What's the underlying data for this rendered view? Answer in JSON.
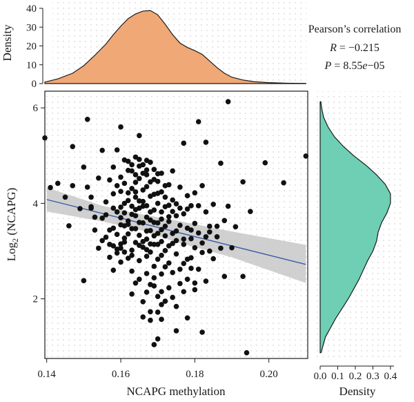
{
  "chart_data": [
    {
      "type": "scatter",
      "xlabel": "NCAPG methylation",
      "ylabel_base": "Log",
      "ylabel_sub": "2",
      "ylabel_rest": " (NCAPG)",
      "xlim": [
        0.1395,
        0.2105
      ],
      "ylim": [
        0.75,
        6.35
      ],
      "xticks": [
        "0.14",
        "0.16",
        "0.18",
        "0.20"
      ],
      "yticks": [
        "2",
        "4",
        "6"
      ],
      "point_color": "#111111",
      "fit_color": "#3a5ba8",
      "band_color": "#c8c8c8",
      "fit": {
        "x": [
          0.14,
          0.21
        ],
        "y": [
          4.08,
          2.72
        ]
      },
      "band_lower": [
        3.83,
        3.62,
        3.45,
        3.19,
        2.87,
        2.33
      ],
      "band_upper": [
        4.33,
        3.95,
        3.78,
        3.64,
        3.41,
        3.13
      ],
      "band_x": [
        0.14,
        0.155,
        0.165,
        0.175,
        0.19,
        0.21
      ],
      "points": [
        [
          0.1395,
          5.37
        ],
        [
          0.141,
          4.33
        ],
        [
          0.143,
          4.42
        ],
        [
          0.145,
          4.13
        ],
        [
          0.146,
          3.53
        ],
        [
          0.147,
          4.37
        ],
        [
          0.147,
          5.19
        ],
        [
          0.149,
          3.89
        ],
        [
          0.15,
          4.76
        ],
        [
          0.15,
          2.38
        ],
        [
          0.151,
          4.34
        ],
        [
          0.151,
          5.76
        ],
        [
          0.152,
          3.93
        ],
        [
          0.152,
          4.13
        ],
        [
          0.153,
          3.71
        ],
        [
          0.154,
          4.53
        ],
        [
          0.155,
          5.11
        ],
        [
          0.155,
          3.69
        ],
        [
          0.156,
          4.03
        ],
        [
          0.157,
          3.44
        ],
        [
          0.157,
          2.87
        ],
        [
          0.158,
          3.9
        ],
        [
          0.158,
          4.76
        ],
        [
          0.158,
          2.6
        ],
        [
          0.159,
          3.04
        ],
        [
          0.159,
          5.12
        ],
        [
          0.159,
          4.37
        ],
        [
          0.16,
          3.15
        ],
        [
          0.16,
          2.77
        ],
        [
          0.16,
          3.55
        ],
        [
          0.16,
          4.55
        ],
        [
          0.16,
          5.6
        ],
        [
          0.161,
          2.98
        ],
        [
          0.161,
          3.8
        ],
        [
          0.161,
          4.91
        ],
        [
          0.161,
          3.27
        ],
        [
          0.162,
          4.06
        ],
        [
          0.162,
          3.63
        ],
        [
          0.162,
          2.85
        ],
        [
          0.162,
          4.22
        ],
        [
          0.163,
          3.02
        ],
        [
          0.163,
          3.94
        ],
        [
          0.163,
          4.68
        ],
        [
          0.163,
          3.47
        ],
        [
          0.163,
          2.58
        ],
        [
          0.164,
          4.13
        ],
        [
          0.164,
          3.74
        ],
        [
          0.164,
          4.97
        ],
        [
          0.164,
          3.18
        ],
        [
          0.164,
          2.33
        ],
        [
          0.165,
          3.9
        ],
        [
          0.165,
          4.52
        ],
        [
          0.165,
          3.33
        ],
        [
          0.165,
          4.78
        ],
        [
          0.165,
          2.8
        ],
        [
          0.165,
          5.42
        ],
        [
          0.166,
          3.59
        ],
        [
          0.166,
          4.28
        ],
        [
          0.166,
          3.08
        ],
        [
          0.166,
          1.94
        ],
        [
          0.166,
          4.04
        ],
        [
          0.167,
          3.71
        ],
        [
          0.167,
          2.53
        ],
        [
          0.167,
          4.6
        ],
        [
          0.167,
          3.25
        ],
        [
          0.167,
          2.14
        ],
        [
          0.167,
          4.9
        ],
        [
          0.168,
          3.82
        ],
        [
          0.168,
          1.55
        ],
        [
          0.168,
          2.98
        ],
        [
          0.168,
          4.45
        ],
        [
          0.168,
          3.43
        ],
        [
          0.168,
          1.73
        ],
        [
          0.169,
          4.19
        ],
        [
          0.169,
          2.68
        ],
        [
          0.169,
          3.6
        ],
        [
          0.169,
          1.04
        ],
        [
          0.169,
          4.71
        ],
        [
          0.169,
          2.27
        ],
        [
          0.17,
          3.37
        ],
        [
          0.17,
          4.0
        ],
        [
          0.17,
          2.05
        ],
        [
          0.17,
          1.16
        ],
        [
          0.17,
          3.14
        ],
        [
          0.17,
          4.46
        ],
        [
          0.171,
          3.67
        ],
        [
          0.171,
          2.52
        ],
        [
          0.171,
          4.24
        ],
        [
          0.171,
          2.91
        ],
        [
          0.171,
          1.88
        ],
        [
          0.172,
          3.93
        ],
        [
          0.172,
          3.32
        ],
        [
          0.172,
          2.67
        ],
        [
          0.172,
          4.13
        ],
        [
          0.173,
          3.62
        ],
        [
          0.173,
          2.23
        ],
        [
          0.173,
          4.39
        ],
        [
          0.173,
          3.11
        ],
        [
          0.174,
          3.83
        ],
        [
          0.174,
          2.55
        ],
        [
          0.174,
          3.37
        ],
        [
          0.174,
          4.68
        ],
        [
          0.175,
          3.22
        ],
        [
          0.175,
          2.94
        ],
        [
          0.175,
          3.99
        ],
        [
          0.175,
          1.84
        ],
        [
          0.176,
          3.54
        ],
        [
          0.176,
          4.34
        ],
        [
          0.176,
          2.32
        ],
        [
          0.177,
          3.78
        ],
        [
          0.177,
          3.14
        ],
        [
          0.177,
          2.74
        ],
        [
          0.177,
          5.26
        ],
        [
          0.178,
          3.48
        ],
        [
          0.178,
          4.16
        ],
        [
          0.178,
          2.41
        ],
        [
          0.178,
          1.6
        ],
        [
          0.179,
          3.95
        ],
        [
          0.179,
          3.26
        ],
        [
          0.179,
          2.86
        ],
        [
          0.18,
          4.22
        ],
        [
          0.18,
          3.58
        ],
        [
          0.18,
          2.19
        ],
        [
          0.18,
          3.07
        ],
        [
          0.181,
          3.38
        ],
        [
          0.181,
          5.71
        ],
        [
          0.181,
          2.62
        ],
        [
          0.182,
          4.37
        ],
        [
          0.182,
          3.17
        ],
        [
          0.182,
          1.3
        ],
        [
          0.183,
          3.82
        ],
        [
          0.183,
          5.28
        ],
        [
          0.183,
          2.37
        ],
        [
          0.184,
          3.52
        ],
        [
          0.184,
          3.4
        ],
        [
          0.185,
          3.98
        ],
        [
          0.185,
          2.84
        ],
        [
          0.186,
          3.3
        ],
        [
          0.187,
          4.84
        ],
        [
          0.187,
          3.06
        ],
        [
          0.188,
          3.64
        ],
        [
          0.188,
          2.47
        ],
        [
          0.189,
          6.13
        ],
        [
          0.189,
          3.94
        ],
        [
          0.19,
          3.07
        ],
        [
          0.191,
          3.51
        ],
        [
          0.193,
          4.45
        ],
        [
          0.193,
          2.47
        ],
        [
          0.194,
          0.87
        ],
        [
          0.195,
          3.83
        ],
        [
          0.199,
          4.85
        ],
        [
          0.204,
          4.43
        ],
        [
          0.21,
          4.99
        ],
        [
          0.158,
          4.2
        ],
        [
          0.159,
          3.35
        ],
        [
          0.16,
          3.92
        ],
        [
          0.161,
          4.42
        ],
        [
          0.162,
          3.56
        ],
        [
          0.163,
          4.31
        ],
        [
          0.164,
          3.47
        ],
        [
          0.165,
          4.05
        ],
        [
          0.166,
          3.2
        ],
        [
          0.167,
          3.95
        ],
        [
          0.168,
          3.15
        ],
        [
          0.169,
          3.86
        ],
        [
          0.17,
          2.83
        ],
        [
          0.171,
          3.45
        ],
        [
          0.172,
          4.37
        ],
        [
          0.173,
          3.72
        ],
        [
          0.174,
          4.07
        ],
        [
          0.175,
          3.42
        ],
        [
          0.176,
          3.9
        ],
        [
          0.177,
          3.25
        ],
        [
          0.156,
          3.76
        ],
        [
          0.157,
          4.49
        ],
        [
          0.158,
          3.11
        ],
        [
          0.159,
          3.82
        ],
        [
          0.16,
          4.25
        ],
        [
          0.161,
          3.53
        ],
        [
          0.162,
          4.69
        ],
        [
          0.163,
          3.77
        ],
        [
          0.164,
          4.44
        ],
        [
          0.165,
          3.6
        ],
        [
          0.166,
          4.63
        ],
        [
          0.167,
          3.42
        ],
        [
          0.168,
          4.15
        ],
        [
          0.169,
          3.32
        ],
        [
          0.17,
          4.21
        ],
        [
          0.171,
          3.82
        ],
        [
          0.172,
          3.01
        ],
        [
          0.173,
          3.96
        ],
        [
          0.174,
          3.16
        ],
        [
          0.175,
          3.74
        ],
        [
          0.176,
          2.62
        ],
        [
          0.178,
          3.88
        ],
        [
          0.179,
          3.44
        ],
        [
          0.181,
          3.95
        ],
        [
          0.184,
          3.0
        ],
        [
          0.163,
          2.91
        ],
        [
          0.165,
          2.41
        ],
        [
          0.167,
          2.89
        ],
        [
          0.169,
          2.44
        ],
        [
          0.171,
          2.15
        ],
        [
          0.173,
          2.75
        ],
        [
          0.166,
          1.62
        ],
        [
          0.171,
          1.57
        ],
        [
          0.175,
          1.33
        ],
        [
          0.163,
          2.1
        ],
        [
          0.168,
          2.3
        ],
        [
          0.17,
          1.72
        ],
        [
          0.172,
          1.95
        ],
        [
          0.174,
          2.03
        ],
        [
          0.162,
          3.36
        ],
        [
          0.164,
          3.87
        ],
        [
          0.166,
          3.94
        ],
        [
          0.168,
          3.65
        ],
        [
          0.17,
          3.59
        ],
        [
          0.172,
          3.52
        ],
        [
          0.164,
          4.6
        ],
        [
          0.166,
          4.81
        ],
        [
          0.168,
          4.86
        ],
        [
          0.17,
          4.62
        ],
        [
          0.165,
          4.92
        ],
        [
          0.167,
          4.35
        ],
        [
          0.169,
          4.5
        ],
        [
          0.171,
          4.63
        ],
        [
          0.163,
          4.81
        ],
        [
          0.161,
          4.0
        ],
        [
          0.162,
          4.88
        ],
        [
          0.164,
          4.24
        ],
        [
          0.167,
          4.7
        ],
        [
          0.16,
          3.06
        ],
        [
          0.161,
          3.19
        ],
        [
          0.165,
          3.12
        ],
        [
          0.167,
          3.03
        ],
        [
          0.169,
          3.14
        ],
        [
          0.171,
          3.2
        ],
        [
          0.16,
          3.7
        ],
        [
          0.159,
          2.96
        ],
        [
          0.158,
          3.48
        ],
        [
          0.157,
          3.14
        ],
        [
          0.156,
          3.29
        ],
        [
          0.155,
          3.22
        ],
        [
          0.154,
          3.06
        ],
        [
          0.153,
          3.44
        ],
        [
          0.152,
          3.9
        ],
        [
          0.177,
          2.15
        ],
        [
          0.178,
          2.83
        ],
        [
          0.179,
          2.64
        ],
        [
          0.18,
          2.33
        ],
        [
          0.182,
          2.97
        ],
        [
          0.183,
          3.3
        ],
        [
          0.186,
          3.52
        ]
      ]
    },
    {
      "type": "area",
      "ylabel": "Density",
      "x_ref": "NCAPG methylation",
      "yticks": [
        "0",
        "10",
        "20",
        "30",
        "40"
      ],
      "ylim": [
        0,
        40
      ],
      "fill_color": "#f0a877",
      "x": [
        0.1395,
        0.143,
        0.147,
        0.15,
        0.153,
        0.156,
        0.158,
        0.16,
        0.162,
        0.164,
        0.166,
        0.168,
        0.17,
        0.172,
        0.174,
        0.176,
        0.178,
        0.18,
        0.182,
        0.184,
        0.186,
        0.188,
        0.19,
        0.193,
        0.196,
        0.2,
        0.205,
        0.21
      ],
      "y": [
        0.8,
        2.5,
        5.5,
        9.5,
        15,
        21,
        26,
        30.5,
        34.5,
        37,
        38.5,
        38.8,
        36.5,
        31.5,
        26,
        21.5,
        19.2,
        17.5,
        15.5,
        12,
        8.5,
        5.5,
        3.4,
        1.9,
        1.0,
        0.5,
        0.2,
        0.1
      ]
    },
    {
      "type": "area",
      "xlabel": "Density",
      "orientation": "horizontal",
      "y_ref": "Log2 (NCAPG)",
      "xticks": [
        "0.0",
        "0.1",
        "0.2",
        "0.3",
        "0.4"
      ],
      "xlim": [
        0,
        0.42
      ],
      "fill_color": "#6ecfb4",
      "y": [
        0.87,
        1.2,
        1.6,
        2.0,
        2.4,
        2.8,
        3.0,
        3.2,
        3.4,
        3.6,
        3.8,
        4.0,
        4.2,
        4.4,
        4.6,
        4.8,
        5.0,
        5.2,
        5.4,
        5.6,
        5.8,
        6.0,
        6.13
      ],
      "x": [
        0.005,
        0.03,
        0.09,
        0.16,
        0.22,
        0.27,
        0.3,
        0.32,
        0.33,
        0.35,
        0.38,
        0.4,
        0.4,
        0.37,
        0.32,
        0.26,
        0.19,
        0.13,
        0.08,
        0.045,
        0.02,
        0.008,
        0.004
      ]
    }
  ],
  "annotation": {
    "title": "Pearson’s correlation",
    "r_label": "R",
    "r_value": " = −0.215",
    "p_label": "P",
    "p_value": " = 8.55",
    "p_e": "e",
    "p_exp": "−05"
  }
}
